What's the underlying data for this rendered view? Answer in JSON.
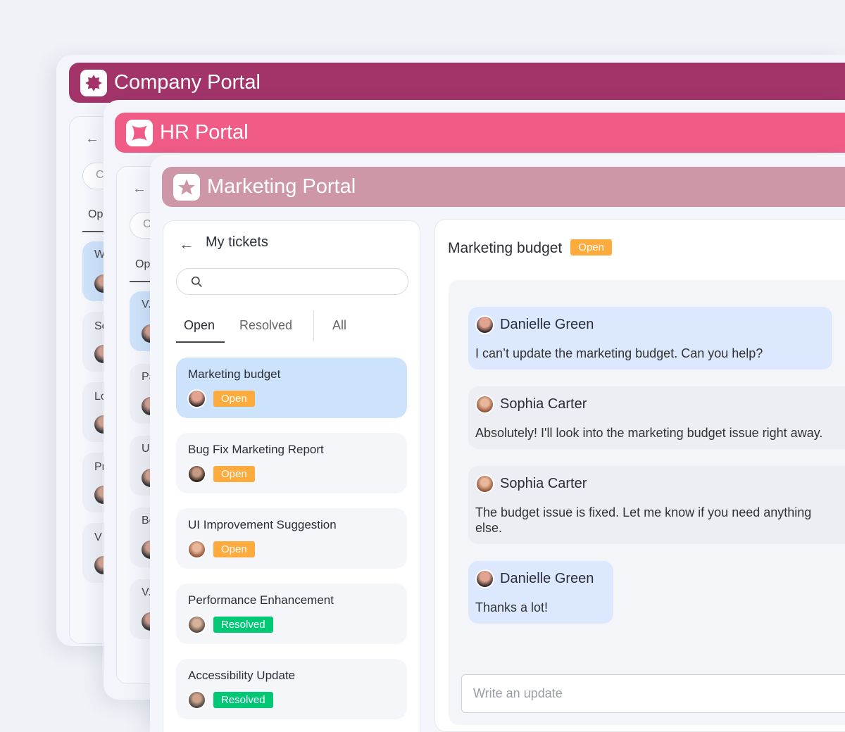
{
  "company_portal": {
    "title": "Company Portal",
    "color": "#A2346A",
    "icon": "badge-burst-icon",
    "ghost_tab": "Op",
    "ghost_search": "C",
    "ghost_items": [
      "W",
      "Se",
      "Lo",
      "Pr",
      "V"
    ]
  },
  "hr_portal": {
    "title": "HR Portal",
    "color": "#F05C86",
    "icon": "sparkle-icon",
    "ghost_tab": "Op",
    "ghost_search": "C",
    "ghost_items": [
      "V.",
      "Pa",
      "U",
      "Be",
      "V."
    ]
  },
  "marketing_portal": {
    "title": "Marketing Portal",
    "color": "#CE97A8",
    "icon": "star-icon"
  },
  "tickets": {
    "title": "My tickets",
    "search_placeholder": "",
    "tabs": [
      {
        "label": "Open",
        "active": true
      },
      {
        "label": "Resolved"
      },
      {
        "label": "All"
      }
    ],
    "items": [
      {
        "title": "Marketing budget",
        "status": "Open",
        "selected": true
      },
      {
        "title": "Bug Fix Marketing Report",
        "status": "Open"
      },
      {
        "title": "UI Improvement Suggestion",
        "status": "Open"
      },
      {
        "title": "Performance Enhancement",
        "status": "Resolved"
      },
      {
        "title": "Accessibility Update",
        "status": "Resolved"
      }
    ]
  },
  "detail": {
    "title": "Marketing budget",
    "status": "Open",
    "messages": [
      {
        "author": "Danielle Green",
        "text": "I can’t update the marketing budget. Can you help?"
      },
      {
        "author": "Sophia Carter",
        "text": "Absolutely! I'll look into the marketing budget issue right away."
      },
      {
        "author": "Sophia Carter",
        "text": "The budget issue is fixed. Let me know if you need anything else."
      },
      {
        "author": "Danielle Green",
        "text": "Thanks a lot!"
      }
    ],
    "input_placeholder": "Write an update"
  },
  "colors": {
    "open": "#FDAB3D",
    "resolved": "#00C875",
    "selected": "#CCE3FB"
  }
}
